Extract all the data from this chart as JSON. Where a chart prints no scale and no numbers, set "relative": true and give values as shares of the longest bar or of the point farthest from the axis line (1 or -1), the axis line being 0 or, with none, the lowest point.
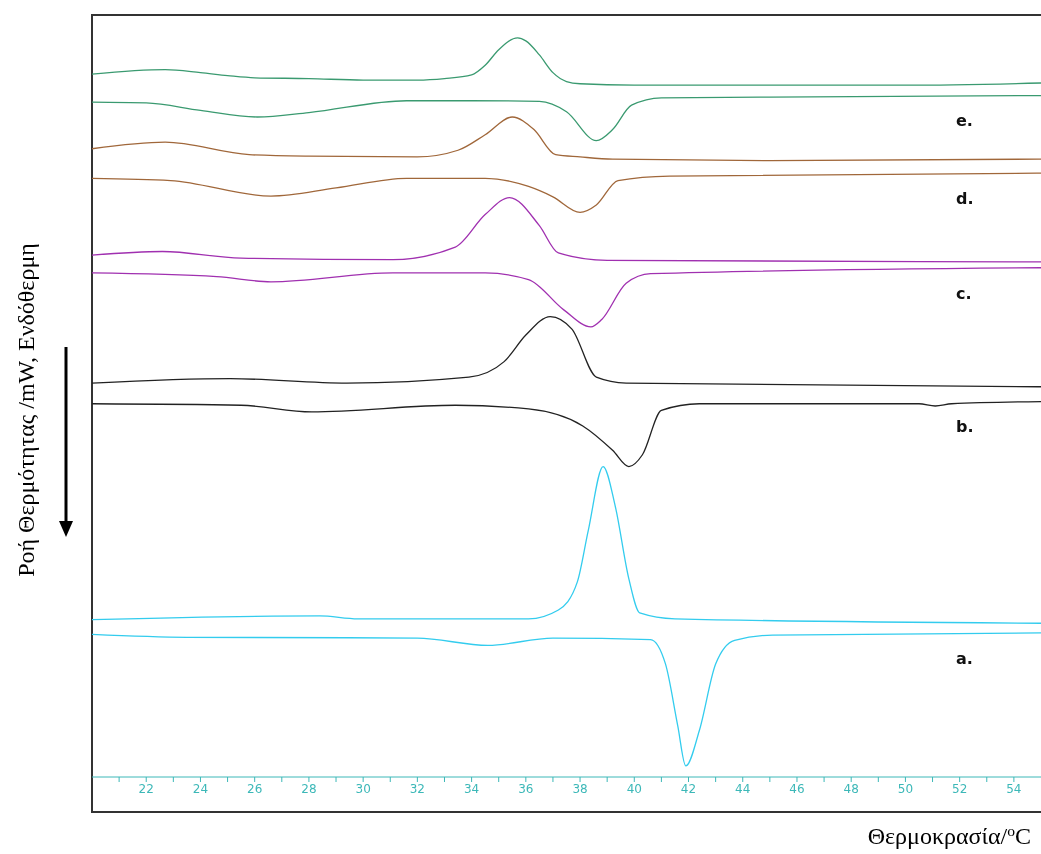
{
  "chart_data": {
    "type": "line",
    "relative": true,
    "xlabel": "Θερμοκρασία/$^{o}$C",
    "ylabel": "Ροή Θερμότητας /mW, Ενδόθερμη",
    "legend": false,
    "grid": false,
    "marker": "none",
    "line_style": "solid",
    "tick_labels": "x",
    "xlim": [
      20,
      55
    ],
    "xticks": [
      {
        "value": 21,
        "label": null
      },
      22,
      {
        "value": 23,
        "label": null
      },
      24,
      {
        "value": 25,
        "label": null
      },
      26,
      {
        "value": 27,
        "label": null
      },
      28,
      {
        "value": 29,
        "label": null
      },
      30,
      {
        "value": 31,
        "label": null
      },
      32,
      {
        "value": 33,
        "label": null
      },
      34,
      {
        "value": 35,
        "label": null
      },
      36,
      {
        "value": 37,
        "label": null
      },
      38,
      {
        "value": 39,
        "label": null
      },
      40,
      {
        "value": 41,
        "label": null
      },
      42,
      {
        "value": 43,
        "label": null
      },
      44,
      {
        "value": 45,
        "label": null
      },
      46,
      {
        "value": 47,
        "label": null
      },
      48,
      {
        "value": 49,
        "label": null
      },
      50,
      {
        "value": 51,
        "label": null
      },
      52,
      {
        "value": 53,
        "label": null
      },
      54
    ],
    "series": [
      {
        "color": "#3a9a70",
        "x": [
          20,
          22.7,
          24,
          25,
          26,
          28,
          30,
          32,
          33,
          34,
          34.5,
          35,
          35.7,
          36,
          36.5,
          37,
          37.5,
          38,
          40,
          50,
          55
        ],
        "values": [
          0.951,
          0.957,
          0.953,
          0.949,
          0.946,
          0.945,
          0.943,
          0.943,
          0.945,
          0.95,
          0.963,
          0.984,
          1,
          0.996,
          0.977,
          0.953,
          0.941,
          0.938,
          0.936,
          0.936,
          0.939
        ]
      },
      {
        "color": "#3a9a70",
        "x": [
          20,
          22,
          24,
          26.1,
          28,
          31.6,
          34,
          36.5,
          37.5,
          38.6,
          39.2,
          39.9,
          41,
          45,
          55
        ],
        "values": [
          0.913,
          0.912,
          0.902,
          0.893,
          0.899,
          0.915,
          0.915,
          0.914,
          0.9,
          0.861,
          0.876,
          0.909,
          0.919,
          0.92,
          0.922
        ]
      },
      {
        "color": "#a0673a",
        "x": [
          20,
          22.7,
          25.8,
          28,
          32,
          33.5,
          34.5,
          35.5,
          36.3,
          37.1,
          38,
          39.2,
          45,
          55
        ],
        "values": [
          0.85,
          0.859,
          0.842,
          0.84,
          0.839,
          0.848,
          0.869,
          0.893,
          0.876,
          0.842,
          0.839,
          0.836,
          0.834,
          0.836
        ]
      },
      {
        "color": "#a0673a",
        "x": [
          20,
          22.9,
          26.6,
          29,
          31.6,
          34.5,
          36.1,
          37,
          38,
          38.6,
          39.4,
          41.3,
          55
        ],
        "values": [
          0.81,
          0.807,
          0.786,
          0.797,
          0.81,
          0.81,
          0.799,
          0.785,
          0.764,
          0.774,
          0.807,
          0.813,
          0.817
        ]
      },
      {
        "color": "#a030b0",
        "x": [
          20,
          22.6,
          25.5,
          31.1,
          33.4,
          34.5,
          35.4,
          36.5,
          37.2,
          39,
          55
        ],
        "values": [
          0.706,
          0.711,
          0.702,
          0.7,
          0.717,
          0.761,
          0.784,
          0.746,
          0.709,
          0.699,
          0.697
        ]
      },
      {
        "color": "#a030b0",
        "x": [
          20,
          24.6,
          26.6,
          31.1,
          34.5,
          36.1,
          37.4,
          38.4,
          38.8,
          39.7,
          40.6,
          55
        ],
        "values": [
          0.682,
          0.677,
          0.67,
          0.682,
          0.682,
          0.673,
          0.632,
          0.609,
          0.619,
          0.668,
          0.681,
          0.689
        ]
      },
      {
        "color": "#222222",
        "x": [
          20,
          25.1,
          29.4,
          33.9,
          35.2,
          36,
          36.9,
          37.7,
          38.6,
          39.7,
          55
        ],
        "values": [
          0.533,
          0.539,
          0.533,
          0.541,
          0.562,
          0.598,
          0.623,
          0.606,
          0.541,
          0.533,
          0.528
        ]
      },
      {
        "color": "#222222",
        "x": [
          20,
          25.5,
          28.1,
          33.4,
          36.1,
          38.1,
          39.2,
          39.8,
          40.3,
          41,
          42.4,
          50.5,
          51.1,
          51.7,
          55
        ],
        "values": [
          0.505,
          0.503,
          0.494,
          0.503,
          0.498,
          0.475,
          0.442,
          0.42,
          0.436,
          0.496,
          0.505,
          0.505,
          0.502,
          0.505,
          0.508
        ]
      },
      {
        "color": "#33ccee",
        "x": [
          20,
          28.4,
          29.8,
          36.1,
          37.2,
          37.9,
          38.3,
          38.85,
          39.3,
          39.8,
          40.2,
          41.5,
          55
        ],
        "values": [
          0.213,
          0.218,
          0.214,
          0.214,
          0.226,
          0.264,
          0.333,
          0.42,
          0.366,
          0.268,
          0.222,
          0.214,
          0.208
        ]
      },
      {
        "color": "#33ccee",
        "x": [
          20,
          23.5,
          32,
          34.6,
          37,
          40.6,
          41.15,
          41.6,
          41.9,
          42.4,
          43,
          43.7,
          45.1,
          55
        ],
        "values": [
          0.193,
          0.189,
          0.188,
          0.178,
          0.188,
          0.186,
          0.153,
          0.07,
          0.015,
          0.063,
          0.153,
          0.185,
          0.192,
          0.195
        ]
      }
    ],
    "annotations": [
      "e.",
      "d.",
      "c.",
      "b.",
      "a."
    ]
  }
}
